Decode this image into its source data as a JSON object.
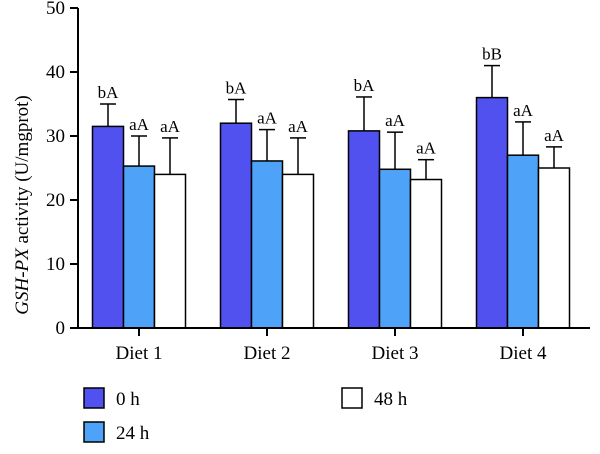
{
  "chart_data": {
    "type": "bar",
    "categories": [
      "Diet 1",
      "Diet 2",
      "Diet 3",
      "Diet 4"
    ],
    "series": [
      {
        "name": "0 h",
        "color": "#5151f0",
        "values": [
          31.5,
          32.0,
          30.8,
          36.0
        ],
        "errors": [
          3.5,
          3.7,
          5.3,
          5.0
        ],
        "labels": [
          "bA",
          "bA",
          "bA",
          "bB"
        ]
      },
      {
        "name": "24 h",
        "color": "#4ea2f7",
        "values": [
          25.3,
          26.1,
          24.8,
          27.0
        ],
        "errors": [
          4.7,
          4.9,
          5.8,
          5.2
        ],
        "labels": [
          "aA",
          "aA",
          "aA",
          "aA"
        ]
      },
      {
        "name": "48 h",
        "color": "#ffffff",
        "values": [
          24.0,
          24.0,
          23.2,
          25.0
        ],
        "errors": [
          5.7,
          5.7,
          3.1,
          3.3
        ],
        "labels": [
          "aA",
          "aA",
          "aA",
          "aA"
        ]
      }
    ],
    "ylabel_italic": "GSH-PX",
    "ylabel_rest": " activity (U/mgprot)",
    "ylim": [
      0,
      50
    ],
    "yticks": [
      "0",
      "10",
      "20",
      "30",
      "40",
      "50"
    ],
    "grid": false,
    "legend_position": "bottom"
  }
}
